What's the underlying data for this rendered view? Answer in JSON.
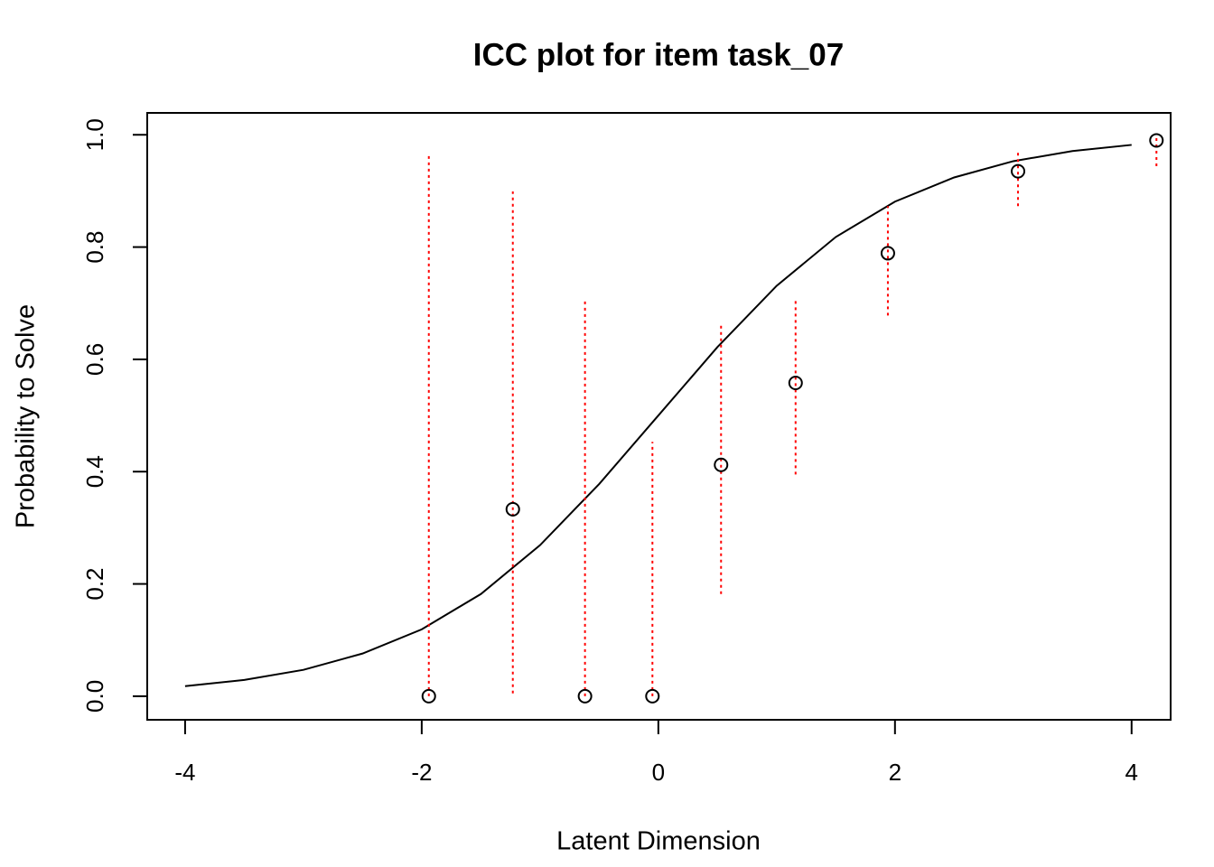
{
  "chart_data": {
    "type": "scatter",
    "title": "ICC plot for item  task_07",
    "x_label": "Latent Dimension",
    "y_label": "Probability to Solve",
    "xlim": [
      -4.32,
      4.33
    ],
    "ylim": [
      -0.042,
      1.039
    ],
    "xticks": [
      -4,
      -2,
      0,
      2,
      4
    ],
    "yticks": [
      {
        "value": 0,
        "label": "0.0"
      },
      0.2,
      0.4,
      0.6,
      0.8,
      {
        "value": 1,
        "label": "1.0"
      }
    ],
    "curve": {
      "color": "#000000",
      "x": [
        -4,
        -3.5,
        -3,
        -2.5,
        -2,
        -1.5,
        -1,
        -0.5,
        0,
        0.5,
        1,
        1.5,
        2,
        2.5,
        3,
        3.5,
        4
      ],
      "values": [
        0.018,
        0.029,
        0.047,
        0.076,
        0.119,
        0.182,
        0.269,
        0.378,
        0.5,
        0.622,
        0.731,
        0.818,
        0.881,
        0.924,
        0.953,
        0.971,
        0.982
      ]
    },
    "points": {
      "color": "#000000",
      "error_color": "#ff0000",
      "x": [
        -1.94,
        -1.23,
        -0.62,
        -0.05,
        0.53,
        1.16,
        1.94,
        3.04,
        4.21
      ],
      "values": [
        0,
        0.333,
        0,
        0,
        0.412,
        0.558,
        0.789,
        0.935,
        0.99
      ],
      "lower": [
        0,
        0.005,
        0,
        0,
        0.182,
        0.395,
        0.678,
        0.873,
        0.944
      ],
      "upper": [
        0.966,
        0.899,
        0.707,
        0.453,
        0.664,
        0.709,
        0.873,
        0.969,
        1.0
      ]
    }
  }
}
